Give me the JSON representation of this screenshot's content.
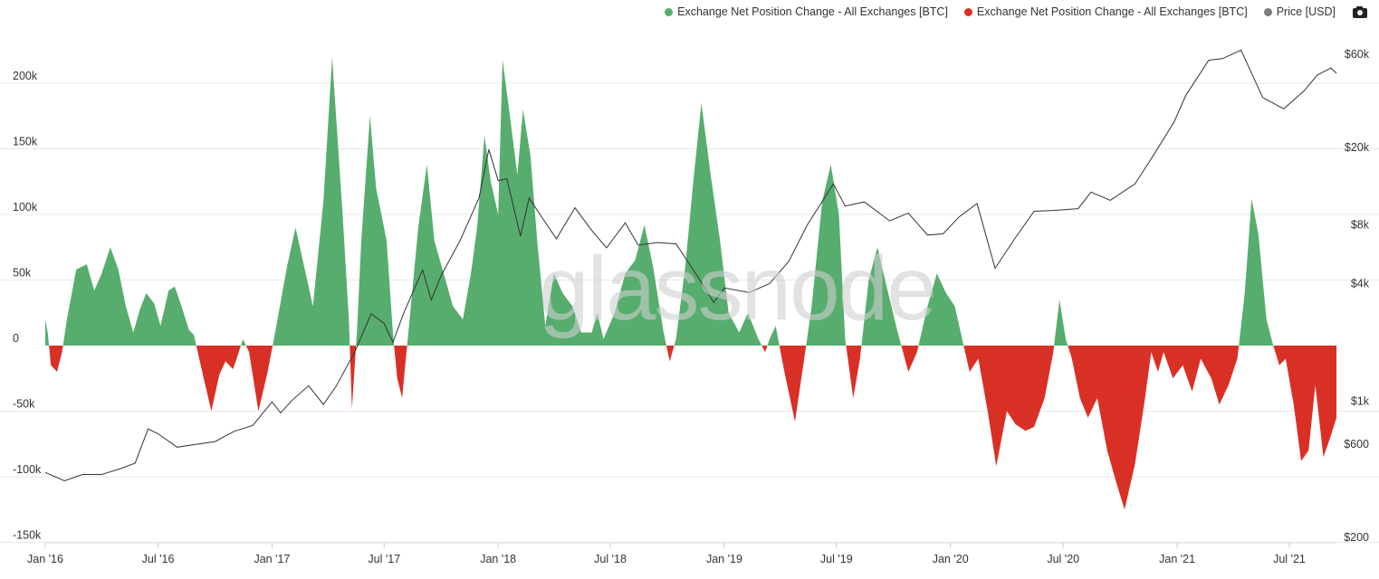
{
  "legend": {
    "inflow_label": "Exchange Net Position Change - All Exchanges [BTC]",
    "outflow_label": "Exchange Net Position Change - All Exchanges [BTC]",
    "price_label": "Price [USD]"
  },
  "watermark": "glassnode",
  "colors": {
    "positive": "#57ad6e",
    "negative": "#d93025",
    "price": "#333333",
    "price_dot": "#7a7a7a",
    "grid": "#e9e9e9"
  },
  "chart_data": {
    "type": "area",
    "xlabel": "",
    "ylabel": "",
    "x_range": [
      "2016-01-01",
      "2021-09-15"
    ],
    "x_ticks": [
      "Jan '16",
      "Jul '16",
      "Jan '17",
      "Jul '17",
      "Jan '18",
      "Jul '18",
      "Jan '19",
      "Jul '19",
      "Jan '20",
      "Jul '20",
      "Jan '21",
      "Jul '21"
    ],
    "y_left": {
      "range": [
        -150000,
        220000
      ],
      "ticks": [
        200000,
        150000,
        100000,
        50000,
        0,
        -50000,
        -100000,
        -150000
      ],
      "tick_labels": [
        "200k",
        "150k",
        "100k",
        "50k",
        "0",
        "-50k",
        "-100k",
        "-150k"
      ]
    },
    "y_right": {
      "scale": "log",
      "range": [
        200,
        60000
      ],
      "ticks": [
        60000,
        20000,
        8000,
        4000,
        1000,
        600,
        200
      ],
      "tick_labels": [
        "$60k",
        "$20k",
        "$8k",
        "$4k",
        "$1k",
        "$600",
        "$200"
      ]
    },
    "series": [
      {
        "name": "Exchange Net Position Change - All Exchanges [BTC]",
        "kind": "area",
        "points": [
          [
            "2016-01-01",
            20000
          ],
          [
            "2016-01-05",
            10000
          ],
          [
            "2016-01-10",
            -15000
          ],
          [
            "2016-01-20",
            -20000
          ],
          [
            "2016-01-28",
            -5000
          ],
          [
            "2016-02-05",
            20000
          ],
          [
            "2016-02-20",
            58000
          ],
          [
            "2016-03-08",
            62000
          ],
          [
            "2016-03-20",
            42000
          ],
          [
            "2016-04-01",
            55000
          ],
          [
            "2016-04-15",
            75000
          ],
          [
            "2016-04-28",
            58000
          ],
          [
            "2016-05-10",
            30000
          ],
          [
            "2016-05-22",
            10000
          ],
          [
            "2016-06-02",
            28000
          ],
          [
            "2016-06-12",
            40000
          ],
          [
            "2016-06-25",
            32000
          ],
          [
            "2016-07-05",
            15000
          ],
          [
            "2016-07-18",
            42000
          ],
          [
            "2016-07-28",
            45000
          ],
          [
            "2016-08-08",
            30000
          ],
          [
            "2016-08-20",
            12000
          ],
          [
            "2016-08-28",
            8000
          ],
          [
            "2016-09-08",
            -15000
          ],
          [
            "2016-09-25",
            -50000
          ],
          [
            "2016-10-08",
            -22000
          ],
          [
            "2016-10-18",
            -12000
          ],
          [
            "2016-10-30",
            -18000
          ],
          [
            "2016-11-05",
            -10000
          ],
          [
            "2016-11-15",
            5000
          ],
          [
            "2016-11-25",
            -5000
          ],
          [
            "2016-12-10",
            -50000
          ],
          [
            "2016-12-25",
            -20000
          ],
          [
            "2017-01-08",
            15000
          ],
          [
            "2017-01-25",
            60000
          ],
          [
            "2017-02-08",
            90000
          ],
          [
            "2017-02-22",
            60000
          ],
          [
            "2017-03-08",
            30000
          ],
          [
            "2017-03-25",
            110000
          ],
          [
            "2017-04-08",
            220000
          ],
          [
            "2017-04-25",
            100000
          ],
          [
            "2017-05-05",
            20000
          ],
          [
            "2017-05-10",
            -48000
          ],
          [
            "2017-05-18",
            10000
          ],
          [
            "2017-05-25",
            80000
          ],
          [
            "2017-06-08",
            175000
          ],
          [
            "2017-06-18",
            120000
          ],
          [
            "2017-07-05",
            80000
          ],
          [
            "2017-07-15",
            10000
          ],
          [
            "2017-07-22",
            -25000
          ],
          [
            "2017-07-30",
            -40000
          ],
          [
            "2017-08-10",
            15000
          ],
          [
            "2017-08-25",
            90000
          ],
          [
            "2017-09-08",
            138000
          ],
          [
            "2017-09-20",
            80000
          ],
          [
            "2017-10-05",
            55000
          ],
          [
            "2017-10-20",
            30000
          ],
          [
            "2017-11-05",
            20000
          ],
          [
            "2017-11-18",
            55000
          ],
          [
            "2017-11-28",
            90000
          ],
          [
            "2017-12-10",
            160000
          ],
          [
            "2017-12-20",
            125000
          ],
          [
            "2018-01-01",
            100000
          ],
          [
            "2018-01-08",
            218000
          ],
          [
            "2018-01-20",
            175000
          ],
          [
            "2018-02-01",
            130000
          ],
          [
            "2018-02-10",
            180000
          ],
          [
            "2018-02-22",
            145000
          ],
          [
            "2018-03-05",
            80000
          ],
          [
            "2018-03-18",
            15000
          ],
          [
            "2018-04-01",
            55000
          ],
          [
            "2018-04-15",
            40000
          ],
          [
            "2018-05-01",
            30000
          ],
          [
            "2018-05-15",
            10000
          ],
          [
            "2018-06-01",
            10000
          ],
          [
            "2018-06-10",
            25000
          ],
          [
            "2018-06-20",
            5000
          ],
          [
            "2018-07-08",
            25000
          ],
          [
            "2018-07-25",
            55000
          ],
          [
            "2018-08-10",
            65000
          ],
          [
            "2018-08-25",
            92000
          ],
          [
            "2018-09-08",
            60000
          ],
          [
            "2018-09-25",
            10000
          ],
          [
            "2018-10-05",
            -12000
          ],
          [
            "2018-10-15",
            5000
          ],
          [
            "2018-10-30",
            60000
          ],
          [
            "2018-11-12",
            125000
          ],
          [
            "2018-11-25",
            185000
          ],
          [
            "2018-12-10",
            130000
          ],
          [
            "2018-12-25",
            80000
          ],
          [
            "2019-01-08",
            25000
          ],
          [
            "2019-01-25",
            10000
          ],
          [
            "2019-02-08",
            25000
          ],
          [
            "2019-02-25",
            5000
          ],
          [
            "2019-03-08",
            -5000
          ],
          [
            "2019-03-15",
            5000
          ],
          [
            "2019-03-25",
            15000
          ],
          [
            "2019-04-08",
            -20000
          ],
          [
            "2019-04-25",
            -58000
          ],
          [
            "2019-05-10",
            -10000
          ],
          [
            "2019-05-22",
            30000
          ],
          [
            "2019-06-08",
            110000
          ],
          [
            "2019-06-22",
            138000
          ],
          [
            "2019-07-05",
            100000
          ],
          [
            "2019-07-15",
            5000
          ],
          [
            "2019-07-28",
            -40000
          ],
          [
            "2019-08-08",
            -10000
          ],
          [
            "2019-08-22",
            50000
          ],
          [
            "2019-09-05",
            75000
          ],
          [
            "2019-09-20",
            45000
          ],
          [
            "2019-10-08",
            10000
          ],
          [
            "2019-10-25",
            -20000
          ],
          [
            "2019-11-08",
            -5000
          ],
          [
            "2019-11-25",
            30000
          ],
          [
            "2019-12-10",
            55000
          ],
          [
            "2019-12-25",
            40000
          ],
          [
            "2020-01-08",
            30000
          ],
          [
            "2020-01-20",
            5000
          ],
          [
            "2020-02-01",
            -20000
          ],
          [
            "2020-02-15",
            -10000
          ],
          [
            "2020-03-01",
            -50000
          ],
          [
            "2020-03-15",
            -92000
          ],
          [
            "2020-04-01",
            -50000
          ],
          [
            "2020-04-15",
            -60000
          ],
          [
            "2020-05-01",
            -65000
          ],
          [
            "2020-05-15",
            -62000
          ],
          [
            "2020-06-01",
            -40000
          ],
          [
            "2020-06-15",
            -5000
          ],
          [
            "2020-06-25",
            35000
          ],
          [
            "2020-07-05",
            5000
          ],
          [
            "2020-07-15",
            -10000
          ],
          [
            "2020-07-28",
            -40000
          ],
          [
            "2020-08-10",
            -55000
          ],
          [
            "2020-08-25",
            -40000
          ],
          [
            "2020-09-10",
            -80000
          ],
          [
            "2020-09-25",
            -105000
          ],
          [
            "2020-10-08",
            -125000
          ],
          [
            "2020-10-25",
            -90000
          ],
          [
            "2020-11-10",
            -40000
          ],
          [
            "2020-11-20",
            -5000
          ],
          [
            "2020-12-01",
            -20000
          ],
          [
            "2020-12-10",
            -5000
          ],
          [
            "2020-12-25",
            -25000
          ],
          [
            "2021-01-10",
            -15000
          ],
          [
            "2021-01-25",
            -35000
          ],
          [
            "2021-02-08",
            -10000
          ],
          [
            "2021-02-25",
            -25000
          ],
          [
            "2021-03-10",
            -45000
          ],
          [
            "2021-03-25",
            -30000
          ],
          [
            "2021-04-08",
            -10000
          ],
          [
            "2021-04-20",
            40000
          ],
          [
            "2021-05-01",
            112000
          ],
          [
            "2021-05-12",
            85000
          ],
          [
            "2021-05-25",
            20000
          ],
          [
            "2021-06-05",
            0
          ],
          [
            "2021-06-15",
            -15000
          ],
          [
            "2021-06-25",
            -10000
          ],
          [
            "2021-07-08",
            -45000
          ],
          [
            "2021-07-20",
            -88000
          ],
          [
            "2021-08-01",
            -80000
          ],
          [
            "2021-08-12",
            -30000
          ],
          [
            "2021-08-25",
            -85000
          ],
          [
            "2021-09-05",
            -70000
          ],
          [
            "2021-09-15",
            -55000
          ]
        ]
      },
      {
        "name": "Price [USD]",
        "kind": "line",
        "points": [
          [
            "2016-01-01",
            430
          ],
          [
            "2016-02-01",
            390
          ],
          [
            "2016-03-01",
            420
          ],
          [
            "2016-04-01",
            420
          ],
          [
            "2016-05-01",
            450
          ],
          [
            "2016-05-25",
            480
          ],
          [
            "2016-06-15",
            720
          ],
          [
            "2016-07-01",
            680
          ],
          [
            "2016-08-01",
            580
          ],
          [
            "2016-09-01",
            600
          ],
          [
            "2016-10-01",
            620
          ],
          [
            "2016-11-01",
            700
          ],
          [
            "2016-12-01",
            750
          ],
          [
            "2017-01-01",
            990
          ],
          [
            "2017-01-15",
            870
          ],
          [
            "2017-02-01",
            1000
          ],
          [
            "2017-03-01",
            1200
          ],
          [
            "2017-03-25",
            960
          ],
          [
            "2017-04-15",
            1200
          ],
          [
            "2017-05-15",
            1800
          ],
          [
            "2017-06-10",
            2800
          ],
          [
            "2017-07-01",
            2500
          ],
          [
            "2017-07-15",
            2000
          ],
          [
            "2017-08-01",
            2800
          ],
          [
            "2017-09-01",
            4700
          ],
          [
            "2017-09-15",
            3300
          ],
          [
            "2017-10-01",
            4400
          ],
          [
            "2017-11-01",
            6700
          ],
          [
            "2017-12-01",
            11000
          ],
          [
            "2017-12-17",
            19500
          ],
          [
            "2018-01-01",
            13500
          ],
          [
            "2018-01-15",
            13800
          ],
          [
            "2018-02-06",
            7000
          ],
          [
            "2018-02-20",
            11000
          ],
          [
            "2018-03-10",
            9000
          ],
          [
            "2018-04-05",
            6800
          ],
          [
            "2018-05-05",
            9800
          ],
          [
            "2018-06-01",
            7500
          ],
          [
            "2018-06-25",
            6100
          ],
          [
            "2018-07-25",
            8200
          ],
          [
            "2018-08-15",
            6300
          ],
          [
            "2018-09-15",
            6500
          ],
          [
            "2018-10-15",
            6400
          ],
          [
            "2018-11-20",
            4300
          ],
          [
            "2018-12-15",
            3200
          ],
          [
            "2019-01-01",
            3800
          ],
          [
            "2019-02-10",
            3600
          ],
          [
            "2019-03-15",
            4000
          ],
          [
            "2019-04-15",
            5200
          ],
          [
            "2019-05-15",
            8000
          ],
          [
            "2019-06-26",
            13000
          ],
          [
            "2019-07-15",
            10000
          ],
          [
            "2019-08-15",
            10500
          ],
          [
            "2019-09-25",
            8400
          ],
          [
            "2019-10-25",
            9200
          ],
          [
            "2019-11-25",
            7100
          ],
          [
            "2019-12-20",
            7200
          ],
          [
            "2020-01-15",
            8800
          ],
          [
            "2020-02-13",
            10300
          ],
          [
            "2020-03-13",
            4800
          ],
          [
            "2020-04-15",
            6900
          ],
          [
            "2020-05-15",
            9400
          ],
          [
            "2020-06-15",
            9500
          ],
          [
            "2020-07-25",
            9700
          ],
          [
            "2020-08-15",
            11800
          ],
          [
            "2020-09-15",
            10700
          ],
          [
            "2020-10-25",
            13000
          ],
          [
            "2020-11-25",
            18500
          ],
          [
            "2020-12-27",
            27000
          ],
          [
            "2021-01-15",
            37000
          ],
          [
            "2021-02-21",
            56000
          ],
          [
            "2021-03-15",
            57000
          ],
          [
            "2021-04-14",
            63000
          ],
          [
            "2021-05-19",
            36000
          ],
          [
            "2021-06-22",
            31500
          ],
          [
            "2021-07-25",
            39000
          ],
          [
            "2021-08-15",
            47000
          ],
          [
            "2021-09-06",
            51000
          ],
          [
            "2021-09-15",
            48000
          ]
        ]
      }
    ]
  }
}
